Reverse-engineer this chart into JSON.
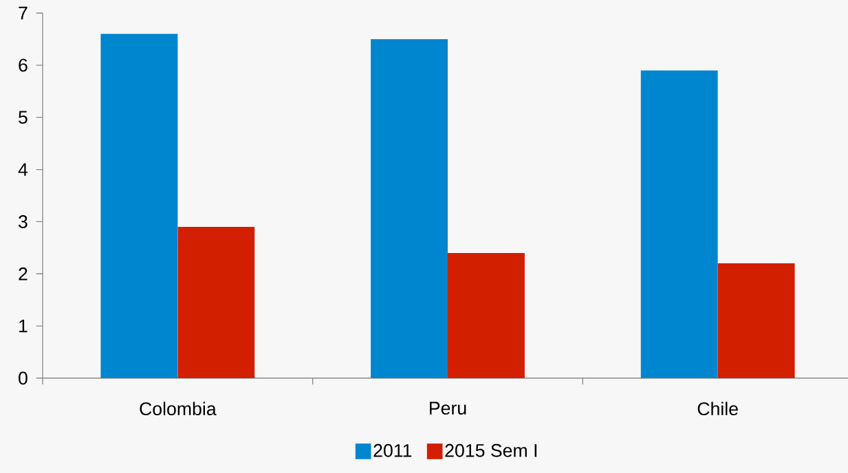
{
  "chart_data": {
    "type": "bar",
    "categories": [
      "Colombia",
      "Peru",
      "Chile"
    ],
    "series": [
      {
        "name": "2011",
        "color": "#0085cf",
        "values": [
          6.6,
          6.5,
          5.9
        ]
      },
      {
        "name": "2015 Sem I",
        "color": "#d21f00",
        "values": [
          2.9,
          2.4,
          2.2
        ]
      }
    ],
    "ylim": [
      0,
      7
    ],
    "yticks": [
      0,
      1,
      2,
      3,
      4,
      5,
      6,
      7
    ],
    "legend": "bottom"
  }
}
